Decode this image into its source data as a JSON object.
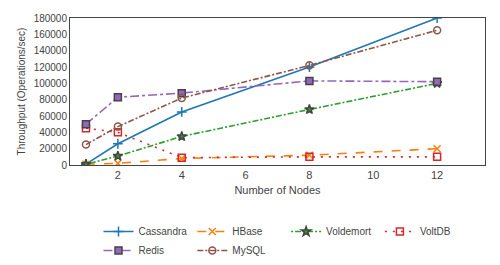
{
  "chart_data": {
    "type": "line",
    "x": [
      1,
      2,
      4,
      8,
      12
    ],
    "series": [
      {
        "name": "Cassandra",
        "values": [
          1000,
          26000,
          65000,
          120000,
          180000
        ],
        "marker": "plus",
        "line_style": "solid"
      },
      {
        "name": "HBase",
        "values": [
          1000,
          2000,
          8000,
          12000,
          20000
        ],
        "marker": "x",
        "line_style": "dashed"
      },
      {
        "name": "Voldemort",
        "values": [
          1000,
          11000,
          35000,
          68000,
          100000
        ],
        "marker": "star",
        "line_style": "dotdash"
      },
      {
        "name": "VoltDB",
        "values": [
          45000,
          40000,
          9000,
          10000,
          10000
        ],
        "marker": "open_square",
        "line_style": "dotted"
      },
      {
        "name": "Redis",
        "values": [
          50000,
          83000,
          88000,
          103000,
          102000
        ],
        "marker": "square",
        "line_style": "dashdot"
      },
      {
        "name": "MySQL",
        "values": [
          25000,
          47000,
          82000,
          122000,
          165000
        ],
        "marker": "open_circle",
        "line_style": "densely_dashdot"
      }
    ],
    "x_label": "Number of Nodes",
    "y_label": "Throughput (Operations/sec)",
    "xlim": [
      0.5,
      13.5
    ],
    "xticks": [
      2,
      4,
      6,
      8,
      10,
      12
    ],
    "ylim": [
      0,
      180000
    ],
    "yticks": [
      0,
      20000,
      40000,
      60000,
      80000,
      100000,
      120000,
      140000,
      160000,
      180000
    ],
    "grid": false,
    "legend": "bottom"
  }
}
